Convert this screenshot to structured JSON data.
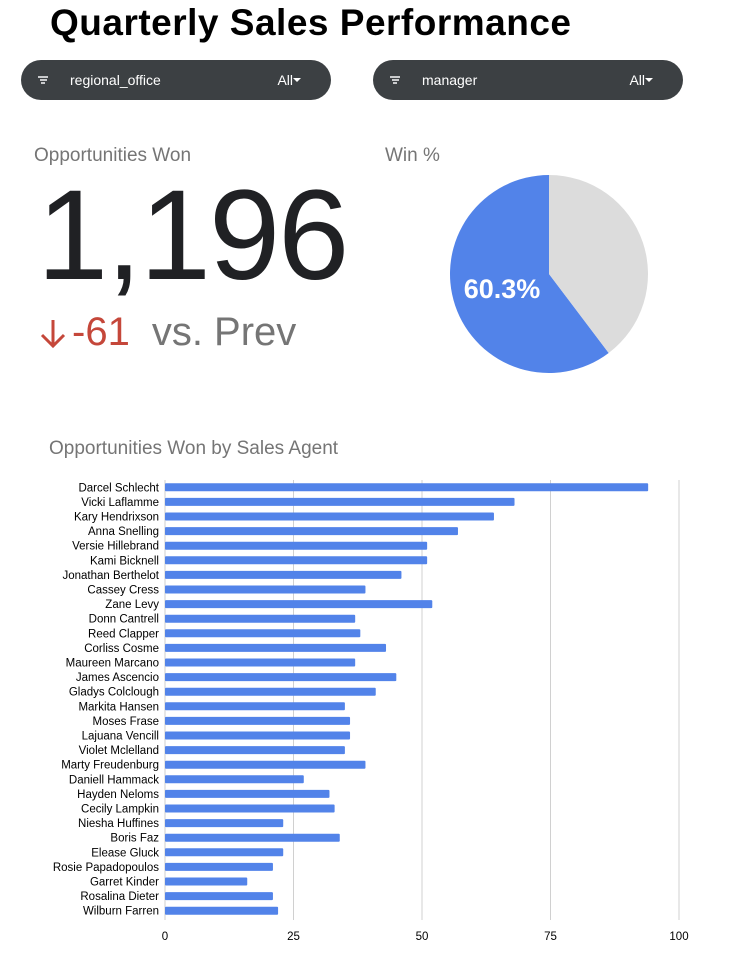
{
  "title": "Quarterly Sales Performance",
  "filters": [
    {
      "label": "regional_office",
      "value": "All"
    },
    {
      "label": "manager",
      "value": "All"
    }
  ],
  "kpi": {
    "label": "Opportunities Won",
    "value": "1,196",
    "delta": "-61",
    "delta_suffix": "vs. Prev",
    "delta_direction": "down"
  },
  "win_pct": {
    "label": "Win %",
    "value_label": "60.3%"
  },
  "colors": {
    "bar": "#5283e9",
    "pie_win": "#5283e9",
    "pie_rest": "#dcdcdc",
    "negative": "#c5473a",
    "chip_bg": "#3c4043"
  },
  "chart_data": [
    {
      "type": "pie",
      "title": "Win %",
      "labels": [
        "",
        ""
      ],
      "values": [
        60.3,
        39.7
      ],
      "slice_labels": [
        "60.3%",
        ""
      ],
      "colors": [
        "#5283e9",
        "#dcdcdc"
      ]
    },
    {
      "type": "bar",
      "orientation": "horizontal",
      "title": "Opportunities Won by Sales Agent",
      "categories": [
        "Darcel Schlecht",
        "Vicki Laflamme",
        "Kary Hendrixson",
        "Anna Snelling",
        "Versie Hillebrand",
        "Kami Bicknell",
        "Jonathan Berthelot",
        "Cassey Cress",
        "Zane Levy",
        "Donn Cantrell",
        "Reed Clapper",
        "Corliss Cosme",
        "Maureen Marcano",
        "James Ascencio",
        "Gladys Colclough",
        "Markita Hansen",
        "Moses Frase",
        "Lajuana Vencill",
        "Violet Mclelland",
        "Marty Freudenburg",
        "Daniell Hammack",
        "Hayden Neloms",
        "Cecily Lampkin",
        "Niesha Huffines",
        "Boris Faz",
        "Elease Gluck",
        "Rosie Papadopoulos",
        "Garret Kinder",
        "Rosalina Dieter",
        "Wilburn Farren"
      ],
      "values": [
        94,
        68,
        64,
        57,
        51,
        51,
        46,
        39,
        52,
        37,
        38,
        43,
        37,
        45,
        41,
        35,
        36,
        36,
        35,
        39,
        27,
        32,
        33,
        23,
        34,
        23,
        21,
        16,
        21,
        22
      ],
      "xlim": [
        0,
        100
      ],
      "xticks": [
        "0",
        "25",
        "50",
        "75",
        "100"
      ],
      "xticks_values": [
        0,
        25,
        50,
        75,
        100
      ],
      "grid": true,
      "color": "#5283e9"
    }
  ]
}
